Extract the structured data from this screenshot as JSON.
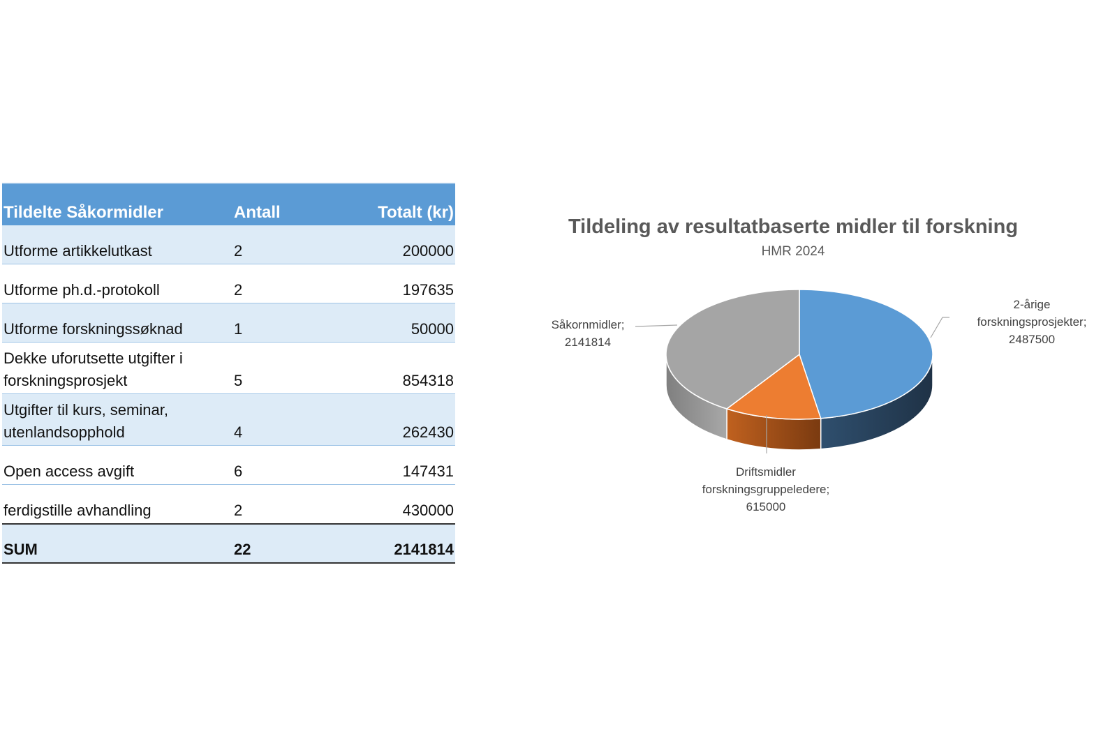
{
  "table": {
    "headers": [
      "Tildelte Såkormidler",
      "Antall",
      "Totalt (kr)"
    ],
    "rows": [
      {
        "label": "Utforme artikkelutkast",
        "antall": "2",
        "totalt": "200000"
      },
      {
        "label": "Utforme ph.d.-protokoll",
        "antall": "2",
        "totalt": "197635"
      },
      {
        "label": "Utforme forskningssøknad",
        "antall": "1",
        "totalt": "50000"
      },
      {
        "label": "Dekke uforutsette utgifter i forskningsprosjekt",
        "antall": "5",
        "totalt": "854318"
      },
      {
        "label": "Utgifter til kurs, seminar, utenlandsopphold",
        "antall": "4",
        "totalt": "262430"
      },
      {
        "label": "Open access avgift",
        "antall": "6",
        "totalt": "147431"
      },
      {
        "label": "ferdigstille avhandling",
        "antall": "2",
        "totalt": "430000"
      }
    ],
    "sum": {
      "label": "SUM",
      "antall": "22",
      "totalt": "2141814"
    },
    "colors": {
      "header": "#5b9bd5",
      "band": "#ddebf7"
    }
  },
  "chart_data": {
    "type": "pie",
    "title": "Tildeling av resultatbaserte midler til forskning",
    "subtitle": "HMR 2024",
    "style": "3d",
    "slices": [
      {
        "label_lines": [
          "2-årige",
          "forskningsprosjekter;",
          "2487500"
        ],
        "value": 2487500,
        "color": "#5b9bd5"
      },
      {
        "label_lines": [
          "Driftsmidler",
          "forskningsgruppeledere;",
          "615000"
        ],
        "value": 615000,
        "color": "#ed7d31"
      },
      {
        "label_lines": [
          "Såkornmidler;",
          "2141814"
        ],
        "value": 2141814,
        "color": "#a5a5a5"
      }
    ]
  }
}
